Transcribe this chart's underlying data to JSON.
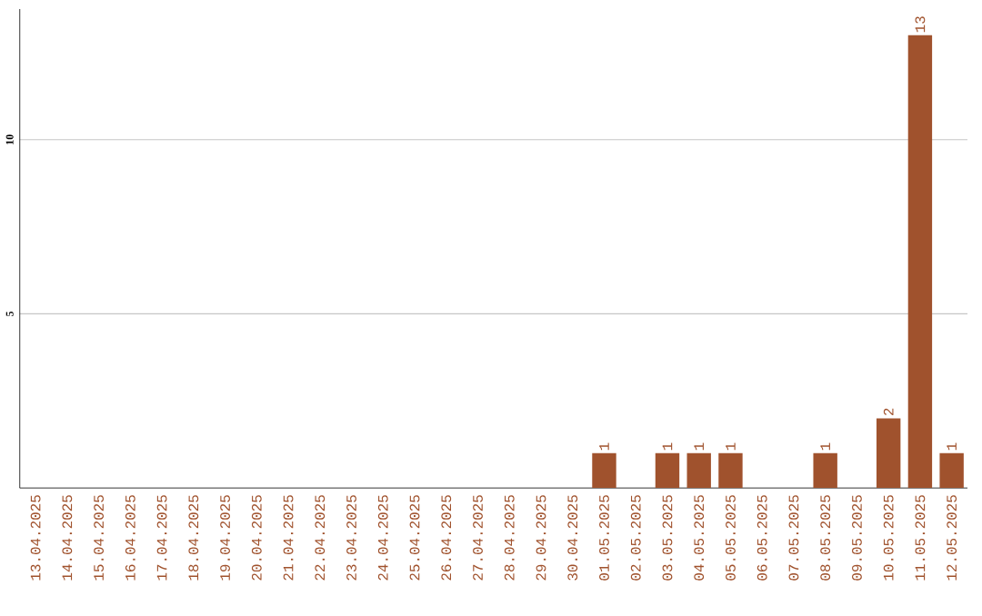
{
  "chart_data": {
    "type": "bar",
    "categories": [
      "13.04.2025",
      "14.04.2025",
      "15.04.2025",
      "16.04.2025",
      "17.04.2025",
      "18.04.2025",
      "19.04.2025",
      "20.04.2025",
      "21.04.2025",
      "22.04.2025",
      "23.04.2025",
      "24.04.2025",
      "25.04.2025",
      "26.04.2025",
      "27.04.2025",
      "28.04.2025",
      "29.04.2025",
      "30.04.2025",
      "01.05.2025",
      "02.05.2025",
      "03.05.2025",
      "04.05.2025",
      "05.05.2025",
      "06.05.2025",
      "07.05.2025",
      "08.05.2025",
      "09.05.2025",
      "10.05.2025",
      "11.05.2025",
      "12.05.2025"
    ],
    "values": [
      0,
      0,
      0,
      0,
      0,
      0,
      0,
      0,
      0,
      0,
      0,
      0,
      0,
      0,
      0,
      0,
      0,
      0,
      1,
      0,
      1,
      1,
      1,
      0,
      0,
      1,
      0,
      2,
      13,
      1
    ],
    "value_labels": [
      null,
      null,
      null,
      null,
      null,
      null,
      null,
      null,
      null,
      null,
      null,
      null,
      null,
      null,
      null,
      null,
      null,
      null,
      "1",
      null,
      "1",
      "1",
      "1",
      null,
      null,
      "1",
      null,
      "2",
      "13",
      "1"
    ],
    "color": "#a0522d",
    "ylim": [
      0,
      13.75
    ],
    "yticks": [
      5,
      10
    ],
    "grid": "y"
  }
}
